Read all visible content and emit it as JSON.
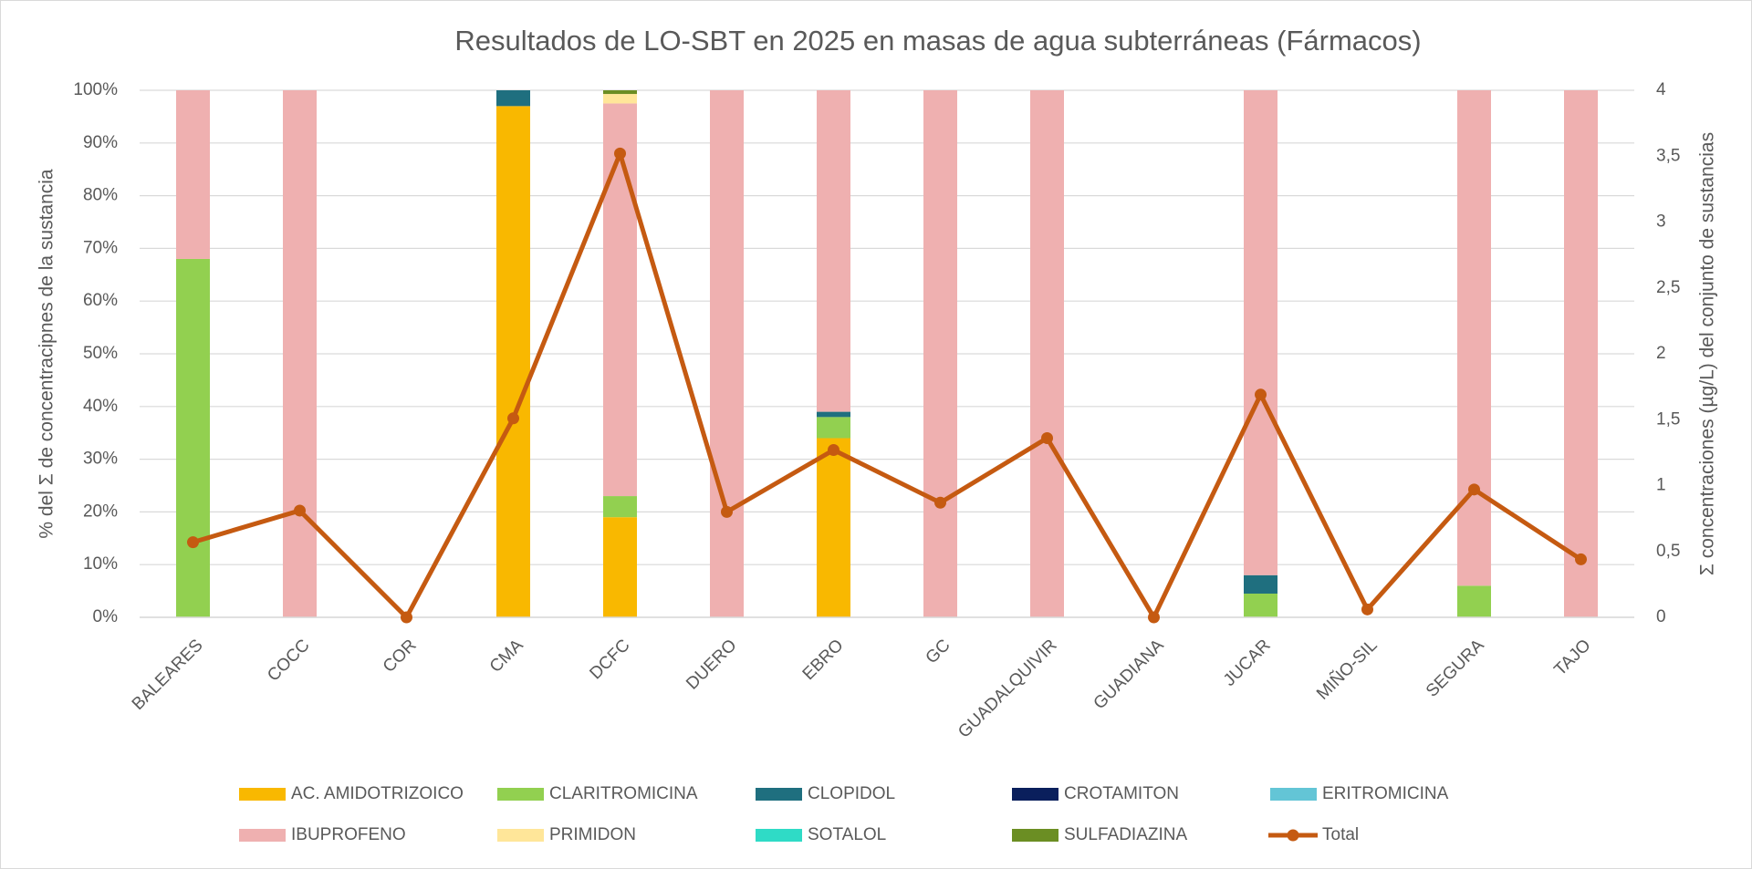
{
  "chart_data": {
    "type": "bar",
    "stacked": true,
    "percent": true,
    "title": "Resultados de LO-SBT en 2025 en masas de agua subterráneas (Fármacos)",
    "y_label": "% del Σ de concentracipnes de la sustancia",
    "y2_label": "Σ concentraciones (µg/L) del conjunto de sustancias",
    "categories": [
      "BALEARES",
      "COCC",
      "COR",
      "CMA",
      "DCFC",
      "DUERO",
      "EBRO",
      "GC",
      "GUADALQUIVIR",
      "GUADIANA",
      "JUCAR",
      "MIÑO-SIL",
      "SEGURA",
      "TAJO"
    ],
    "series": [
      {
        "name": "AC. AMIDOTRIZOICO",
        "color": "#f9b800",
        "values": [
          0,
          0,
          0,
          97,
          19,
          0,
          34,
          0,
          0,
          0,
          0,
          0,
          0,
          0
        ]
      },
      {
        "name": "CLARITROMICINA",
        "color": "#92d050",
        "values": [
          68,
          0,
          0,
          0,
          4,
          0,
          4,
          0,
          0,
          0,
          4.5,
          0,
          6,
          0
        ]
      },
      {
        "name": "CLOPIDOL",
        "color": "#1f6f7f",
        "values": [
          0,
          0,
          0,
          3,
          0,
          0,
          1,
          0,
          0,
          0,
          3.5,
          0,
          0,
          0
        ]
      },
      {
        "name": "CROTAMITON",
        "color": "#0a1f5c",
        "values": [
          0,
          0,
          0,
          0,
          0,
          0,
          0,
          0,
          0,
          0,
          0,
          0,
          0,
          0
        ]
      },
      {
        "name": "ERITROMICINA",
        "color": "#63c5d6",
        "values": [
          0,
          0,
          0,
          0,
          0,
          0,
          0,
          0,
          0,
          0,
          0,
          0,
          0,
          0
        ]
      },
      {
        "name": "IBUPROFENO",
        "color": "#efb0b0",
        "values": [
          32,
          100,
          0,
          0,
          74.5,
          100,
          61,
          100,
          100,
          0,
          92,
          0,
          94,
          100
        ]
      },
      {
        "name": "PRIMIDON",
        "color": "#ffe699",
        "values": [
          0,
          0,
          0,
          0,
          1.8,
          0,
          0,
          0,
          0,
          0,
          0,
          0,
          0,
          0
        ]
      },
      {
        "name": "SOTALOL",
        "color": "#2fdbc6",
        "values": [
          0,
          0,
          0,
          0,
          0,
          0,
          0,
          0,
          0,
          0,
          0,
          0,
          0,
          0
        ]
      },
      {
        "name": "SULFADIAZINA",
        "color": "#6b8e23",
        "values": [
          0,
          0,
          0,
          0,
          0.7,
          0,
          0,
          0,
          0,
          0,
          0,
          0,
          0,
          0
        ]
      },
      {
        "name": "Total",
        "color": "#c55a11",
        "type": "line",
        "axis": "y2",
        "values": [
          0.57,
          0.81,
          0,
          1.51,
          3.52,
          0.8,
          1.27,
          0.87,
          1.36,
          0,
          1.69,
          0.06,
          0.97,
          0.44
        ]
      }
    ],
    "ylim": [
      0,
      100
    ],
    "yticks": [
      {
        "value": 0,
        "label": "0%"
      },
      {
        "value": 10,
        "label": "10%"
      },
      {
        "value": 20,
        "label": "20%"
      },
      {
        "value": 30,
        "label": "30%"
      },
      {
        "value": 40,
        "label": "40%"
      },
      {
        "value": 50,
        "label": "50%"
      },
      {
        "value": 60,
        "label": "60%"
      },
      {
        "value": 70,
        "label": "70%"
      },
      {
        "value": 80,
        "label": "80%"
      },
      {
        "value": 90,
        "label": "90%"
      },
      {
        "value": 100,
        "label": "100%"
      }
    ],
    "y2lim": [
      0,
      4
    ],
    "y2ticks": [
      0,
      {
        "value": 0.5,
        "label": "0,5"
      },
      1,
      {
        "value": 1.5,
        "label": "1,5"
      },
      2,
      {
        "value": 2.5,
        "label": "2,5"
      },
      3,
      {
        "value": 3.5,
        "label": "3,5"
      },
      4
    ],
    "grid": true,
    "legend": "bottom"
  }
}
